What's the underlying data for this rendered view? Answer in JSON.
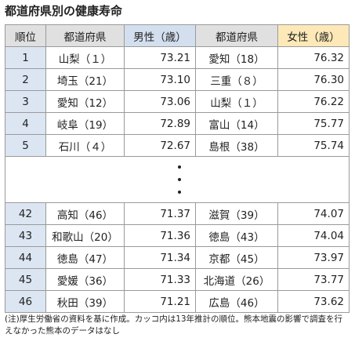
{
  "title": "都道府県別の健康寿命",
  "headers": {
    "rank": "順位",
    "pref_male": "都道府県",
    "male": "男性（歳）",
    "pref_female": "都道府県",
    "female": "女性（歳）"
  },
  "rows_top": [
    {
      "rank": "1",
      "male_pref": "山梨（１）",
      "male": "73.21",
      "female_pref": "愛知（18）",
      "female": "76.32"
    },
    {
      "rank": "2",
      "male_pref": "埼玉（21）",
      "male": "73.10",
      "female_pref": "三重（８）",
      "female": "76.30"
    },
    {
      "rank": "3",
      "male_pref": "愛知（12）",
      "male": "73.06",
      "female_pref": "山梨（１）",
      "female": "76.22"
    },
    {
      "rank": "4",
      "male_pref": "岐阜（19）",
      "male": "72.89",
      "female_pref": "富山（14）",
      "female": "75.77"
    },
    {
      "rank": "5",
      "male_pref": "石川（４）",
      "male": "72.67",
      "female_pref": "島根（38）",
      "female": "75.74"
    }
  ],
  "rows_bottom": [
    {
      "rank": "42",
      "male_pref": "高知（46）",
      "male": "71.37",
      "female_pref": "滋賀（39）",
      "female": "74.07"
    },
    {
      "rank": "43",
      "male_pref": "和歌山（20）",
      "male": "71.36",
      "female_pref": "徳島（43）",
      "female": "74.04"
    },
    {
      "rank": "44",
      "male_pref": "徳島（47）",
      "male": "71.34",
      "female_pref": "京都（45）",
      "female": "73.97"
    },
    {
      "rank": "45",
      "male_pref": "愛媛（36）",
      "male": "71.33",
      "female_pref": "北海道（26）",
      "female": "73.77"
    },
    {
      "rank": "46",
      "male_pref": "秋田（39）",
      "male": "71.21",
      "female_pref": "広島（46）",
      "female": "73.62"
    }
  ],
  "note": "(注)厚生労働省の資料を基に作成。カッコ内は13年推計の順位。熊本地震の影響で調査を行えなかった熊本のデータはなし",
  "colors": {
    "rank_cell": "#dce6f2",
    "header_gray": "#e0e0e0",
    "header_male": "#d3dfee",
    "header_female": "#fde9b8",
    "border": "#9a9a9a"
  }
}
